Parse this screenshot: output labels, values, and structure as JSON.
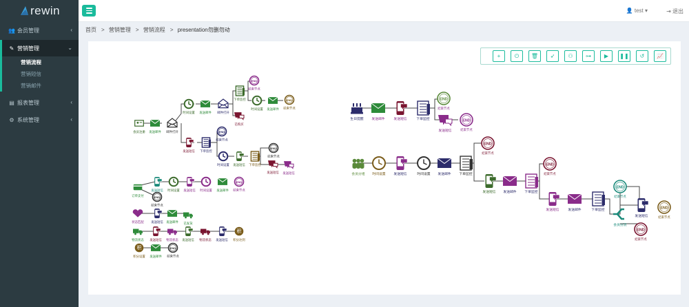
{
  "brand": {
    "name": "rewin"
  },
  "sidebar": {
    "items": [
      {
        "label": "会员管理",
        "icon": "users-icon"
      },
      {
        "label": "营销管理",
        "icon": "edit-icon",
        "active": true,
        "children": [
          "营销流程",
          "营销短信",
          "营销邮件"
        ]
      },
      {
        "label": "报表管理",
        "icon": "chart-icon"
      },
      {
        "label": "系统管理",
        "icon": "cogs-icon"
      }
    ]
  },
  "topbar": {
    "user": "test",
    "logout": "退出"
  },
  "breadcrumb": [
    "首页",
    "营销管理",
    "营销流程",
    "presentation勿删勿动"
  ],
  "toolbar": [
    "plus-icon",
    "power-icon",
    "trash-icon",
    "rocket-icon",
    "binoculars-icon",
    "sitemap-icon",
    "play-icon",
    "pause-icon",
    "undo-icon",
    "line-chart-icon"
  ],
  "colors": {
    "accent": "#1abb9c",
    "sidebar": "#2c3b41",
    "green": "#2e8b3a",
    "purple": "#8a2c8a",
    "darkgreen": "#3c6b2c",
    "navy": "#2c2c6b",
    "maroon": "#7a1530"
  },
  "labels": {
    "member_register": "会员注册",
    "send_mail": "发送邮件",
    "mail_open": "邮件打开",
    "time_set": "时间设置",
    "mail_open2": "邮件打开",
    "order_monitor": "下单监控",
    "end_node": "结束节点",
    "already_buy": "已购买",
    "end": "END",
    "send_sms": "发送短信",
    "birthday": "生日提醒",
    "member_group": "会员分组",
    "member_split": "会员分流",
    "order_pay": "订单支付",
    "logistics": "物流状态",
    "points": "积分设置",
    "points_reach": "积分达到",
    "status_match": "状态匹配",
    "already_ship": "已发货"
  }
}
